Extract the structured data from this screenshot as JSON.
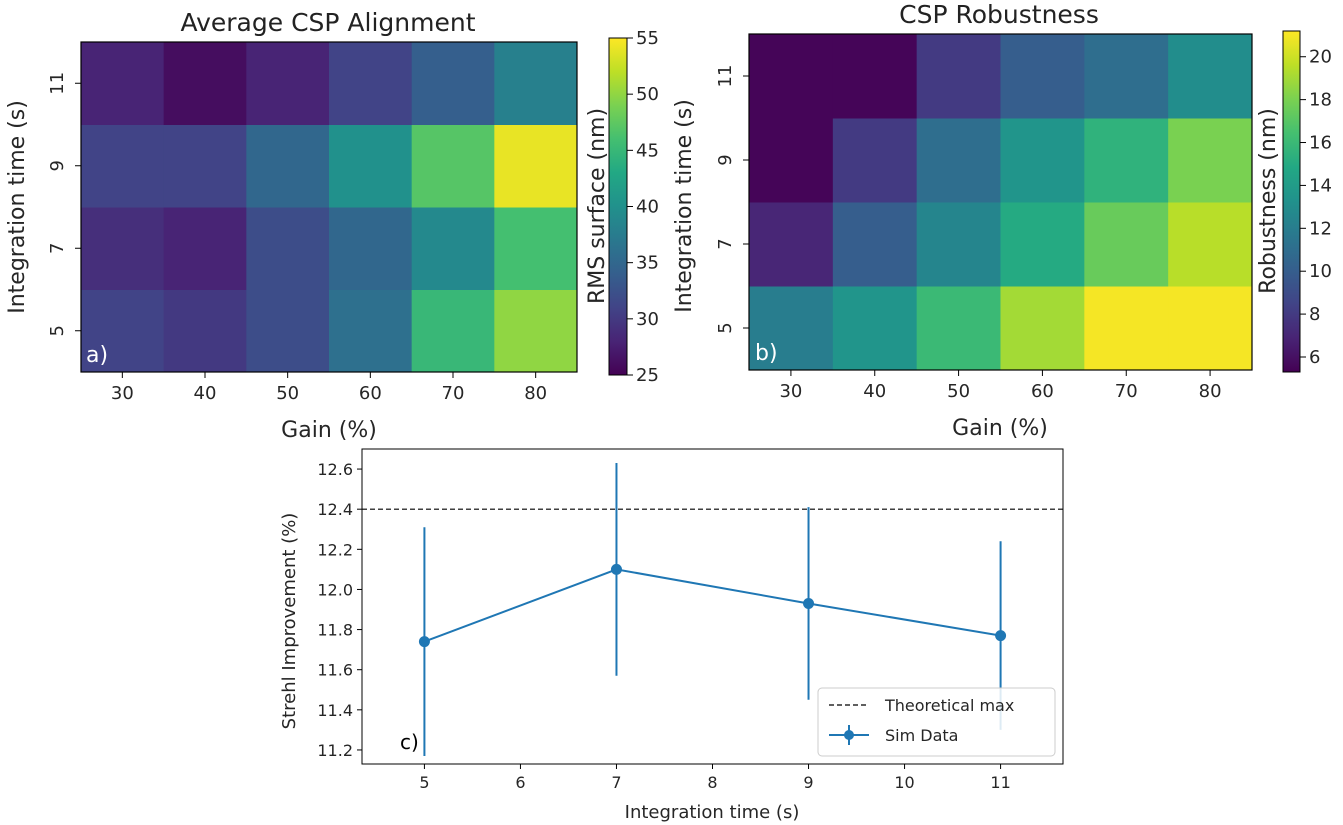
{
  "chart_data": [
    {
      "id": "a",
      "type": "heatmap",
      "title": "Average CSP Alignment",
      "xlabel": "Gain (%)",
      "ylabel": "Integration time (s)",
      "panel_label": "a)",
      "x_categories": [
        "30",
        "40",
        "50",
        "60",
        "70",
        "80"
      ],
      "y_categories": [
        "5",
        "7",
        "9",
        "11"
      ],
      "values": [
        [
          31,
          30,
          32,
          36,
          45,
          50
        ],
        [
          29,
          28,
          32,
          35,
          39,
          46
        ],
        [
          31,
          31,
          35,
          40,
          47,
          54
        ],
        [
          28,
          26,
          28,
          31,
          34,
          38
        ]
      ],
      "colorbar": {
        "label": "RMS surface (nm)",
        "range": [
          25,
          55
        ],
        "ticks": [
          "25",
          "30",
          "35",
          "40",
          "45",
          "50",
          "55"
        ]
      }
    },
    {
      "id": "b",
      "type": "heatmap",
      "title": "CSP Robustness",
      "xlabel": "Gain (%)",
      "ylabel": "Integration time (s)",
      "panel_label": "b)",
      "x_categories": [
        "30",
        "40",
        "50",
        "60",
        "70",
        "80"
      ],
      "y_categories": [
        "5",
        "7",
        "9",
        "11"
      ],
      "values": [
        [
          12,
          13.5,
          16,
          19,
          21,
          21
        ],
        [
          7,
          10,
          12.5,
          15,
          17.5,
          19.5
        ],
        [
          5.5,
          8,
          11,
          13.5,
          15.5,
          18
        ],
        [
          5.5,
          5.5,
          8,
          10,
          11,
          13
        ]
      ],
      "colorbar": {
        "label": "Robustness (nm)",
        "range": [
          5.3,
          21.2
        ],
        "ticks": [
          "6",
          "8",
          "10",
          "12",
          "14",
          "16",
          "18",
          "20"
        ]
      }
    },
    {
      "id": "c",
      "type": "line",
      "xlabel": "Integration time (s)",
      "ylabel": "Strehl Improvement (%)",
      "panel_label": "c)",
      "x": [
        5,
        7,
        9,
        11
      ],
      "y": [
        11.74,
        12.1,
        11.93,
        11.77
      ],
      "yerr": [
        0.57,
        0.53,
        0.48,
        0.47
      ],
      "xlim": [
        4.35,
        11.65
      ],
      "ylim": [
        11.13,
        12.7
      ],
      "x_ticks": [
        "5",
        "6",
        "7",
        "8",
        "9",
        "10",
        "11"
      ],
      "y_ticks": [
        "11.2",
        "11.4",
        "11.6",
        "11.8",
        "12.0",
        "12.2",
        "12.4",
        "12.6"
      ],
      "hline": 12.4,
      "legend": [
        "Theoretical max",
        "Sim Data"
      ],
      "legend_position": "lower-right",
      "series_color": "#1f77b4"
    }
  ]
}
